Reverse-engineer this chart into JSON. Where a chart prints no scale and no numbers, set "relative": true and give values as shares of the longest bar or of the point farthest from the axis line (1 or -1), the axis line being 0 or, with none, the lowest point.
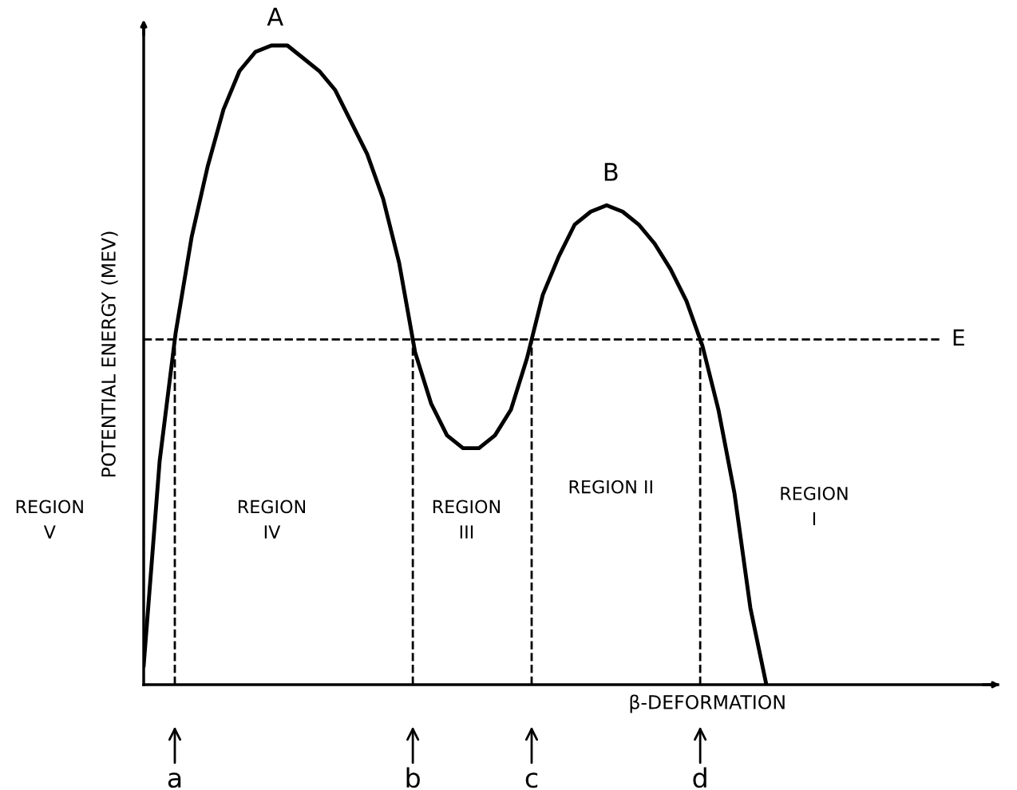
{
  "chart_data": {
    "type": "line",
    "relative": true,
    "xlabel": "β-DEFORMATION",
    "ylabel": "POTENTIAL ENERGY (MEV)",
    "categories": [
      null,
      null,
      null,
      null,
      null,
      null,
      null,
      null,
      null,
      null,
      null,
      null,
      null,
      null,
      null,
      null,
      null,
      null,
      null,
      null,
      null,
      null,
      null,
      null,
      null,
      null,
      null,
      null,
      null,
      null,
      null,
      null,
      null,
      null,
      null,
      null,
      null,
      null,
      null,
      null
    ],
    "series": [
      {
        "color": "#000000",
        "values": [
          0.03,
          0.35,
          0.55,
          0.7,
          0.81,
          0.9,
          0.96,
          0.99,
          1.0,
          1.0,
          0.98,
          0.96,
          0.93,
          0.88,
          0.83,
          0.76,
          0.66,
          0.52,
          0.44,
          0.39,
          0.37,
          0.37,
          0.39,
          0.43,
          0.51,
          0.61,
          0.67,
          0.72,
          0.74,
          0.75,
          0.74,
          0.72,
          0.69,
          0.65,
          0.6,
          0.53,
          0.43,
          0.3,
          0.12,
          0.0
        ]
      }
    ],
    "ref_lines": [
      {
        "axis": "y",
        "value": 0.54,
        "label": "E",
        "line_style": "dashed"
      }
    ],
    "annotations": [
      "A",
      "B",
      "REGION\nV",
      "REGION\nIV",
      "REGION\nIII",
      "REGION II",
      "REGION\nI",
      "a",
      "b",
      "c",
      "d"
    ],
    "marker": "none",
    "line_style": "solid"
  }
}
